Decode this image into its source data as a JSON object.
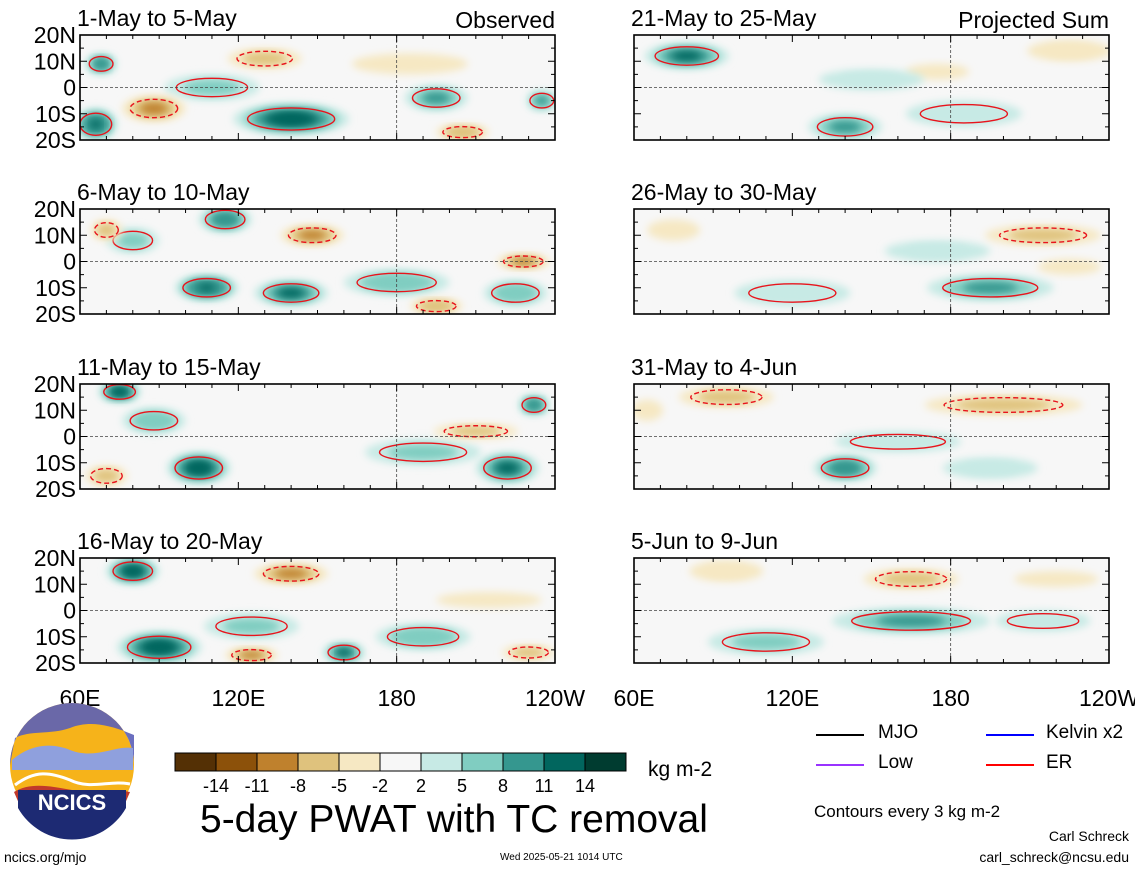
{
  "chart_data": {
    "type": "heatmap",
    "title": "5-day PWAT with TC removal",
    "variable_units": "kg m-2",
    "panel_group_labels": {
      "left": "Observed",
      "right": "Projected Sum"
    },
    "x_ticks": [
      "60E",
      "120E",
      "180",
      "120W"
    ],
    "y_ticks": [
      "20N",
      "10N",
      "0",
      "10S",
      "20S"
    ],
    "xlim": [
      60,
      240
    ],
    "ylim": [
      -20,
      20
    ],
    "panels": [
      {
        "label": "1-May to 5-May",
        "column": "left",
        "row": 0,
        "anomalies": [
          {
            "lon": 140,
            "lat": -12,
            "value": 14,
            "rx": 22,
            "ry": 6
          },
          {
            "lon": 66,
            "lat": -14,
            "value": 13,
            "rx": 8,
            "ry": 6
          },
          {
            "lon": 68,
            "lat": 9,
            "value": 10,
            "rx": 6,
            "ry": 4
          },
          {
            "lon": 110,
            "lat": 0,
            "value": 6,
            "rx": 18,
            "ry": 5
          },
          {
            "lon": 195,
            "lat": -4,
            "value": 9,
            "rx": 12,
            "ry": 5
          },
          {
            "lon": 235,
            "lat": -5,
            "value": 9,
            "rx": 6,
            "ry": 4
          },
          {
            "lon": 88,
            "lat": -8,
            "value": -9,
            "rx": 12,
            "ry": 5
          },
          {
            "lon": 130,
            "lat": 11,
            "value": -5,
            "rx": 14,
            "ry": 4
          },
          {
            "lon": 205,
            "lat": -17,
            "value": -7,
            "rx": 10,
            "ry": 3
          },
          {
            "lon": 185,
            "lat": 9,
            "value": -3,
            "rx": 22,
            "ry": 4
          }
        ]
      },
      {
        "label": "6-May to 10-May",
        "column": "left",
        "row": 1,
        "anomalies": [
          {
            "lon": 108,
            "lat": -10,
            "value": 13,
            "rx": 12,
            "ry": 5
          },
          {
            "lon": 140,
            "lat": -12,
            "value": 12,
            "rx": 14,
            "ry": 5
          },
          {
            "lon": 115,
            "lat": 16,
            "value": 10,
            "rx": 10,
            "ry": 5
          },
          {
            "lon": 180,
            "lat": -8,
            "value": 7,
            "rx": 20,
            "ry": 5
          },
          {
            "lon": 225,
            "lat": -12,
            "value": 8,
            "rx": 12,
            "ry": 5
          },
          {
            "lon": 80,
            "lat": 8,
            "value": 6,
            "rx": 10,
            "ry": 5
          },
          {
            "lon": 148,
            "lat": 10,
            "value": -8,
            "rx": 12,
            "ry": 4
          },
          {
            "lon": 228,
            "lat": 0,
            "value": -9,
            "rx": 10,
            "ry": 3
          },
          {
            "lon": 195,
            "lat": -17,
            "value": -7,
            "rx": 10,
            "ry": 3
          },
          {
            "lon": 70,
            "lat": 12,
            "value": -6,
            "rx": 6,
            "ry": 4
          }
        ]
      },
      {
        "label": "11-May to 15-May",
        "column": "left",
        "row": 2,
        "anomalies": [
          {
            "lon": 105,
            "lat": -12,
            "value": 14,
            "rx": 12,
            "ry": 6
          },
          {
            "lon": 75,
            "lat": 17,
            "value": 14,
            "rx": 8,
            "ry": 4
          },
          {
            "lon": 222,
            "lat": -12,
            "value": 12,
            "rx": 12,
            "ry": 6
          },
          {
            "lon": 232,
            "lat": 12,
            "value": 10,
            "rx": 6,
            "ry": 4
          },
          {
            "lon": 190,
            "lat": -6,
            "value": 6,
            "rx": 22,
            "ry": 5
          },
          {
            "lon": 88,
            "lat": 6,
            "value": 7,
            "rx": 12,
            "ry": 5
          },
          {
            "lon": 210,
            "lat": 2,
            "value": -6,
            "rx": 16,
            "ry": 3
          },
          {
            "lon": 70,
            "lat": -15,
            "value": -5,
            "rx": 8,
            "ry": 4
          }
        ]
      },
      {
        "label": "16-May to 20-May",
        "column": "left",
        "row": 3,
        "anomalies": [
          {
            "lon": 90,
            "lat": -14,
            "value": 14,
            "rx": 16,
            "ry": 6
          },
          {
            "lon": 80,
            "lat": 15,
            "value": 14,
            "rx": 10,
            "ry": 5
          },
          {
            "lon": 160,
            "lat": -16,
            "value": 12,
            "rx": 8,
            "ry": 4
          },
          {
            "lon": 125,
            "lat": -6,
            "value": 6,
            "rx": 18,
            "ry": 5
          },
          {
            "lon": 190,
            "lat": -10,
            "value": 7,
            "rx": 18,
            "ry": 5
          },
          {
            "lon": 140,
            "lat": 14,
            "value": -8,
            "rx": 14,
            "ry": 4
          },
          {
            "lon": 125,
            "lat": -17,
            "value": -9,
            "rx": 10,
            "ry": 3
          },
          {
            "lon": 230,
            "lat": -16,
            "value": -6,
            "rx": 10,
            "ry": 3
          },
          {
            "lon": 215,
            "lat": 4,
            "value": -3,
            "rx": 20,
            "ry": 3
          }
        ]
      },
      {
        "label": "21-May to 25-May",
        "column": "right",
        "row": 0,
        "anomalies": [
          {
            "lon": 80,
            "lat": 12,
            "value": 12,
            "rx": 16,
            "ry": 5
          },
          {
            "lon": 140,
            "lat": -15,
            "value": 9,
            "rx": 14,
            "ry": 5
          },
          {
            "lon": 185,
            "lat": -10,
            "value": 5,
            "rx": 22,
            "ry": 5
          },
          {
            "lon": 150,
            "lat": 3,
            "value": 4,
            "rx": 20,
            "ry": 4
          },
          {
            "lon": 225,
            "lat": 14,
            "value": -4,
            "rx": 16,
            "ry": 4
          },
          {
            "lon": 175,
            "lat": 6,
            "value": -3,
            "rx": 12,
            "ry": 3
          }
        ]
      },
      {
        "label": "26-May to 30-May",
        "column": "right",
        "row": 1,
        "anomalies": [
          {
            "lon": 195,
            "lat": -10,
            "value": 9,
            "rx": 24,
            "ry": 5
          },
          {
            "lon": 120,
            "lat": -12,
            "value": 5,
            "rx": 22,
            "ry": 5
          },
          {
            "lon": 175,
            "lat": 4,
            "value": 4,
            "rx": 20,
            "ry": 4
          },
          {
            "lon": 215,
            "lat": 10,
            "value": -5,
            "rx": 22,
            "ry": 4
          },
          {
            "lon": 75,
            "lat": 12,
            "value": -3,
            "rx": 10,
            "ry": 4
          },
          {
            "lon": 225,
            "lat": -2,
            "value": -3,
            "rx": 12,
            "ry": 3
          }
        ]
      },
      {
        "label": "31-May to 4-Jun",
        "column": "right",
        "row": 2,
        "anomalies": [
          {
            "lon": 140,
            "lat": -12,
            "value": 10,
            "rx": 12,
            "ry": 5
          },
          {
            "lon": 160,
            "lat": -2,
            "value": 5,
            "rx": 24,
            "ry": 4
          },
          {
            "lon": 195,
            "lat": -12,
            "value": 4,
            "rx": 18,
            "ry": 4
          },
          {
            "lon": 200,
            "lat": 12,
            "value": -6,
            "rx": 30,
            "ry": 4
          },
          {
            "lon": 95,
            "lat": 15,
            "value": -5,
            "rx": 18,
            "ry": 4
          },
          {
            "lon": 65,
            "lat": 10,
            "value": -3,
            "rx": 6,
            "ry": 4
          }
        ]
      },
      {
        "label": "5-Jun to 9-Jun",
        "column": "right",
        "row": 3,
        "anomalies": [
          {
            "lon": 165,
            "lat": -4,
            "value": 9,
            "rx": 30,
            "ry": 5
          },
          {
            "lon": 110,
            "lat": -12,
            "value": 6,
            "rx": 22,
            "ry": 5
          },
          {
            "lon": 215,
            "lat": -4,
            "value": 5,
            "rx": 18,
            "ry": 4
          },
          {
            "lon": 165,
            "lat": 12,
            "value": -5,
            "rx": 18,
            "ry": 4
          },
          {
            "lon": 95,
            "lat": 15,
            "value": -4,
            "rx": 14,
            "ry": 4
          },
          {
            "lon": 220,
            "lat": 12,
            "value": -3,
            "rx": 16,
            "ry": 3
          }
        ]
      }
    ],
    "colorbar": {
      "labels": [
        "-14",
        "-11",
        "-8",
        "-5",
        "-2",
        "2",
        "5",
        "8",
        "11",
        "14"
      ],
      "colors": [
        "#543005",
        "#8c510a",
        "#bf812d",
        "#dfc27d",
        "#f6e8c3",
        "#f7f7f7",
        "#c7eae5",
        "#80cdc1",
        "#35978f",
        "#01665e",
        "#003c30"
      ]
    },
    "legend": [
      {
        "label": "MJO",
        "color": "#000000"
      },
      {
        "label": "Kelvin x2",
        "color": "#0000ff"
      },
      {
        "label": "Low",
        "color": "#9933ff"
      },
      {
        "label": "ER",
        "color": "#ff0000"
      }
    ],
    "contour_note": "Contours every 3 kg m-2",
    "grid": false
  },
  "footer": {
    "logo_text": "NCICS",
    "url": "ncics.org/mjo",
    "timestamp": "Wed 2025-05-21 1014 UTC",
    "author": "Carl Schreck",
    "email": "carl_schreck@ncsu.edu"
  }
}
